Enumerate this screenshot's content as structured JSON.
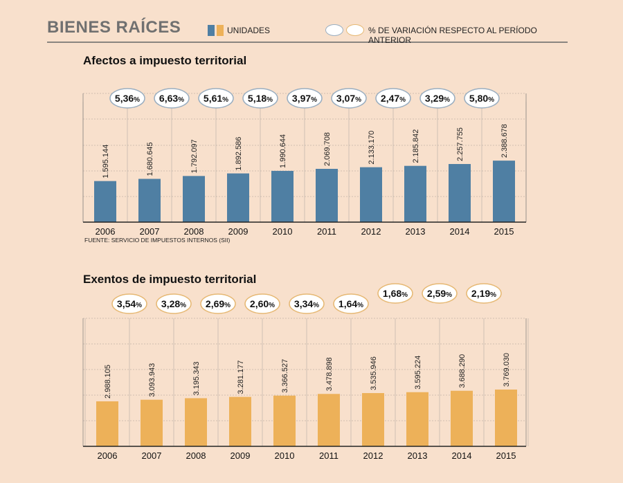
{
  "header": {
    "title": "BIENES RAÍCES",
    "legend_units": "UNIDADES",
    "legend_variation": "% DE VARIACIÓN RESPECTO AL PERÍODO ANTERIOR",
    "percent_sign": "%"
  },
  "colors": {
    "background": "#f8e0cc",
    "bar_afectos": "#4f7fa3",
    "bar_exentos": "#edb159",
    "grid": "#a59c94"
  },
  "chart_data": [
    {
      "type": "bar",
      "title": "Afectos a impuesto territorial",
      "categories": [
        "2006",
        "2007",
        "2008",
        "2009",
        "2010",
        "2011",
        "2012",
        "2013",
        "2014",
        "2015"
      ],
      "values": [
        1595144,
        1680645,
        1792097,
        1892586,
        1990644,
        2069708,
        2133170,
        2185842,
        2257755,
        2388678
      ],
      "value_labels": [
        "1.595.144",
        "1.680.645",
        "1.792.097",
        "1.892.586",
        "1.990.644",
        "2.069.708",
        "2.133.170",
        "2.185.842",
        "2.257.755",
        "2.388.678"
      ],
      "variation": [
        "5,36",
        "6,63",
        "5,61",
        "5,18",
        "3,97",
        "3,07",
        "2,47",
        "3,29",
        "5,80"
      ],
      "ylim": [
        0,
        5000000
      ],
      "xlabel": "",
      "ylabel": "",
      "source": "FUENTE: SERVICIO DE IMPUESTOS INTERNOS (SII)"
    },
    {
      "type": "bar",
      "title": "Exentos de impuesto territorial",
      "categories": [
        "2006",
        "2007",
        "2008",
        "2009",
        "2010",
        "2011",
        "2012",
        "2013",
        "2014",
        "2015"
      ],
      "values": [
        2988105,
        3093943,
        3195343,
        3281177,
        3366527,
        3478898,
        3535946,
        3595224,
        3688290,
        3769030
      ],
      "value_labels": [
        "2.988.105",
        "3.093.943",
        "3.195.343",
        "3.281.177",
        "3.366.527",
        "3.478.898",
        "3.535.946",
        "3.595.224",
        "3.688.290",
        "3.769.030"
      ],
      "variation": [
        "3,54",
        "3,28",
        "2,69",
        "2,60",
        "3,34",
        "1,64",
        "1,68",
        "2,59",
        "2,19"
      ],
      "ylim": [
        0,
        8500000
      ],
      "xlabel": "",
      "ylabel": ""
    }
  ]
}
